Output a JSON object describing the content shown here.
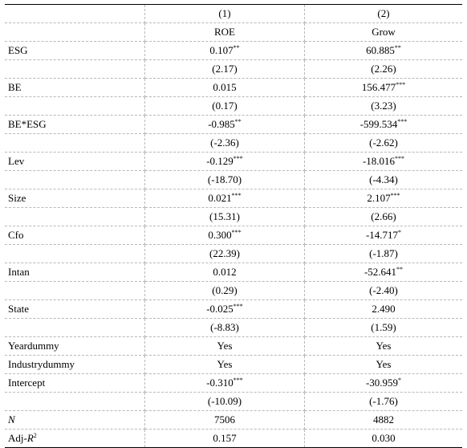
{
  "columns": {
    "numbers": [
      "(1)",
      "(2)"
    ],
    "names": [
      "ROE",
      "Grow"
    ]
  },
  "rows": [
    {
      "label": "ESG",
      "c1": "0.107",
      "c1_sig": "**",
      "c2": "60.885",
      "c2_sig": "**"
    },
    {
      "label": "",
      "c1": "(2.17)",
      "c1_sig": "",
      "c2": "(2.26)",
      "c2_sig": ""
    },
    {
      "label": "BE",
      "c1": "0.015",
      "c1_sig": "",
      "c2": "156.477",
      "c2_sig": "***"
    },
    {
      "label": "",
      "c1": "(0.17)",
      "c1_sig": "",
      "c2": "(3.23)",
      "c2_sig": ""
    },
    {
      "label": "BE*ESG",
      "c1": "-0.985",
      "c1_sig": "**",
      "c2": "-599.534",
      "c2_sig": "***"
    },
    {
      "label": "",
      "c1": "(-2.36)",
      "c1_sig": "",
      "c2": "(-2.62)",
      "c2_sig": ""
    },
    {
      "label": "Lev",
      "c1": "-0.129",
      "c1_sig": "***",
      "c2": "-18.016",
      "c2_sig": "***"
    },
    {
      "label": "",
      "c1": "(-18.70)",
      "c1_sig": "",
      "c2": "(-4.34)",
      "c2_sig": ""
    },
    {
      "label": "Size",
      "c1": "0.021",
      "c1_sig": "***",
      "c2": "2.107",
      "c2_sig": "***"
    },
    {
      "label": "",
      "c1": "(15.31)",
      "c1_sig": "",
      "c2": "(2.66)",
      "c2_sig": ""
    },
    {
      "label": "Cfo",
      "c1": "0.300",
      "c1_sig": "***",
      "c2": "-14.717",
      "c2_sig": "*"
    },
    {
      "label": "",
      "c1": "(22.39)",
      "c1_sig": "",
      "c2": "(-1.87)",
      "c2_sig": ""
    },
    {
      "label": "Intan",
      "c1": "0.012",
      "c1_sig": "",
      "c2": "-52.641",
      "c2_sig": "**"
    },
    {
      "label": "",
      "c1": "(0.29)",
      "c1_sig": "",
      "c2": "(-2.40)",
      "c2_sig": ""
    },
    {
      "label": "State",
      "c1": "-0.025",
      "c1_sig": "***",
      "c2": "2.490",
      "c2_sig": ""
    },
    {
      "label": "",
      "c1": "(-8.83)",
      "c1_sig": "",
      "c2": "(1.59)",
      "c2_sig": ""
    },
    {
      "label": "Yeardummy",
      "c1": "Yes",
      "c1_sig": "",
      "c2": "Yes",
      "c2_sig": ""
    },
    {
      "label": "Industrydummy",
      "c1": "Yes",
      "c1_sig": "",
      "c2": "Yes",
      "c2_sig": ""
    },
    {
      "label": "Intercept",
      "c1": "-0.310",
      "c1_sig": "***",
      "c2": "-30.959",
      "c2_sig": "*"
    },
    {
      "label": "",
      "c1": "(-10.09)",
      "c1_sig": "",
      "c2": "(-1.76)",
      "c2_sig": ""
    }
  ],
  "footer": {
    "n_label": "N",
    "n_c1": "7506",
    "n_c2": "4882",
    "adj_prefix": "Adj-",
    "adj_var": "R",
    "adj_sup": "2",
    "adj_c1": "0.157",
    "adj_c2": "0.030"
  }
}
